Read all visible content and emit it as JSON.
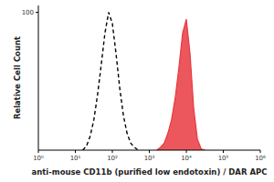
{
  "chart_data": {
    "type": "line",
    "x_label": "anti-mouse CD11b (purified low endotoxin) / DAR APC",
    "y_label": "Relative Cell Count",
    "log": "x",
    "xlim": [
      1,
      1000000
    ],
    "xticks": [
      {
        "value": 1,
        "label": "10⁰"
      },
      {
        "value": 10,
        "label": "10¹"
      },
      {
        "value": 100,
        "label": "10²"
      },
      {
        "value": 1000,
        "label": "10³"
      },
      {
        "value": 10000,
        "label": "10⁴"
      },
      {
        "value": 100000,
        "label": "10⁵"
      },
      {
        "value": 1000000,
        "label": "10⁶"
      }
    ],
    "ylim": [
      0,
      105
    ],
    "yticks": [
      100
    ],
    "x": [
      10,
      12.6,
      15.8,
      20,
      25.1,
      31.6,
      39.8,
      50.1,
      63.1,
      79.4,
      100,
      125.9,
      158.5,
      199.5,
      251.2,
      316.2,
      398.1,
      501.2,
      631,
      794.3,
      1000,
      1259,
      1585,
      1995,
      2512,
      3162,
      3981,
      5012,
      6310,
      7943,
      10000,
      12589,
      15849,
      19953,
      25119,
      31623,
      39811
    ],
    "series": [
      {
        "type": "line",
        "line_style": "dashed",
        "color": "#000000",
        "values": [
          null,
          null,
          0,
          3,
          10,
          22,
          40,
          62,
          85,
          100,
          92,
          70,
          45,
          25,
          12,
          5,
          2,
          0,
          null,
          null,
          null,
          null,
          null,
          null,
          null,
          null,
          null,
          null,
          null,
          null,
          null,
          null,
          null,
          null,
          null,
          null,
          null
        ]
      },
      {
        "type": "area",
        "line_style": "solid",
        "color": "#e8393f",
        "values": [
          null,
          null,
          null,
          null,
          null,
          null,
          null,
          null,
          null,
          null,
          null,
          null,
          null,
          null,
          null,
          null,
          null,
          null,
          null,
          null,
          null,
          null,
          0,
          2,
          5,
          12,
          22,
          38,
          60,
          85,
          95,
          70,
          30,
          8,
          1,
          0,
          null
        ]
      }
    ]
  }
}
